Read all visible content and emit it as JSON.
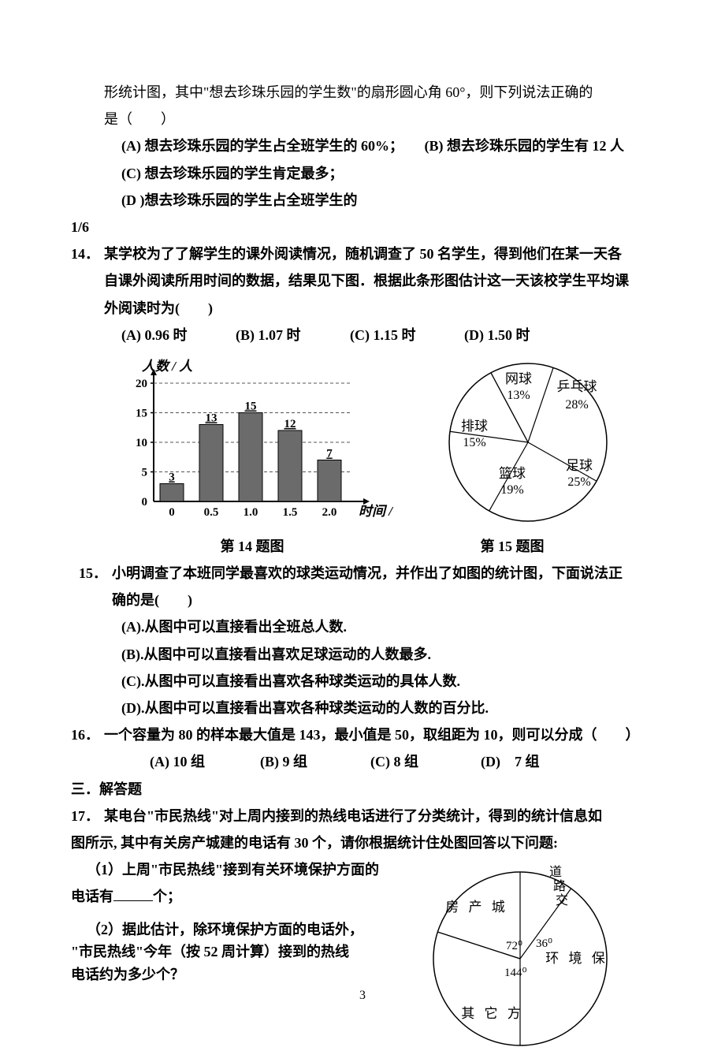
{
  "q13": {
    "cont_line1": "形统计图，其中\"想去珍珠乐园的学生数\"的扇形圆心角 60°，则下列说法正确的",
    "cont_line2": "是（　　）",
    "optA": "(A)  想去珍珠乐园的学生占全班学生的 60%；",
    "optB": "(B)  想去珍珠乐园的学生有 12 人",
    "optC": "(C)  想去珍珠乐园的学生肯定最多；",
    "optD": "(D )想去珍珠乐园的学生占全班学生的",
    "frac": "1/6"
  },
  "q14": {
    "num": "14．",
    "line1": "某学校为了了解学生的课外阅读情况，随机调查了 50 名学生，得到他们在某一天各",
    "line2": "自课外阅读所用时间的数据，结果见下图．根据此条形图估计这一天该校学生平均课",
    "line3": "外阅读时为(　　)",
    "optA": "(A) 0.96 时",
    "optB": "(B) 1.07 时",
    "optC": "(C) 1.15 时",
    "optD": "(D) 1.50 时",
    "chart": {
      "y_label": "人数 / 人",
      "x_label": "时间 / 时",
      "y_ticks": [
        "0",
        "5",
        "10",
        "15",
        "20"
      ],
      "x_ticks": [
        "0",
        "0.5",
        "1.0",
        "1.5",
        "2.0"
      ],
      "bars": [
        {
          "x": "0",
          "val": 3,
          "label": "3"
        },
        {
          "x": "0.5",
          "val": 13,
          "label": "13"
        },
        {
          "x": "1.0",
          "val": 15,
          "label": "15"
        },
        {
          "x": "1.5",
          "val": 12,
          "label": "12"
        },
        {
          "x": "2.0",
          "val": 7,
          "label": "7"
        }
      ],
      "bar_color": "#6b6b6b",
      "axis_color": "#000000",
      "y_max": 20
    },
    "caption": "第 14 题图"
  },
  "q15": {
    "num": "15．",
    "line1": "小明调查了本班同学最喜欢的球类运动情况，并作出了如图的统计图，下面说法正",
    "line2": "确的是(　　)",
    "optA": "(A).从图中可以直接看出全班总人数.",
    "optB": "(B).从图中可以直接看出喜欢足球运动的人数最多.",
    "optC": "(C).从图中可以直接看出喜欢各种球类运动的具体人数.",
    "optD": "(D).从图中可以直接看出喜欢各种球类运动的人数的百分比.",
    "pie": {
      "slices": [
        {
          "label": "乒乓球",
          "pct": "28%",
          "pct_val": 28
        },
        {
          "label": "足球",
          "pct": "25%",
          "pct_val": 25
        },
        {
          "label": "篮球",
          "pct": "19%",
          "pct_val": 19
        },
        {
          "label": "排球",
          "pct": "15%",
          "pct_val": 15
        },
        {
          "label": "网球",
          "pct": "13%",
          "pct_val": 13
        }
      ],
      "stroke": "#000000",
      "fill": "#ffffff"
    },
    "caption": "第 15 题图"
  },
  "q16": {
    "num": "16．",
    "text": "一个容量为 80 的样本最大值是 143，最小值是 50，取组距为 10，则可以分成（　　）",
    "optA": "(A) 10 组",
    "optB": "(B) 9 组",
    "optC": "(C) 8 组",
    "optD": "(D)　7 组"
  },
  "section3": "三．解答题",
  "q17": {
    "num": "17．",
    "line1": "某电台\"市民热线\"对上周内接到的热线电话进行了分类统计，得到的统计信息如",
    "line2": "图所示, 其中有关房产城建的电话有 30 个，请你根据统计住处图回答以下问题:",
    "sub1a": "（1）上周\"市民热线\"接到有关环境保护方面的",
    "sub1b_before": "电话有",
    "sub1b_after": "个；",
    "sub2a": "（2）据此估计，除环境保护方面的电话外，",
    "sub2b": "\"市民热线\"今年（按 52 周计算）接到的热线",
    "sub2c": "电话约为多少个？",
    "pie": {
      "labels": {
        "房产城": {
          "angle": "72⁰"
        },
        "道路交": {},
        "环境保": {
          "angle": "36⁰"
        },
        "其它方": {
          "angle": "144⁰"
        }
      },
      "stroke": "#000000",
      "fill": "#ffffff"
    }
  },
  "page_number": "3"
}
